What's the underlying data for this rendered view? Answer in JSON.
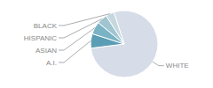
{
  "chart_data": {
    "type": "pie",
    "categories": [
      "WHITE",
      "A.I.",
      "ASIAN",
      "HISPANIC",
      "BLACK"
    ],
    "values": [
      78,
      7,
      6,
      5,
      4
    ],
    "colors": [
      "#d6dde8",
      "#5b9db5",
      "#7ab3c5",
      "#a0c5d0",
      "#c5d8df"
    ]
  }
}
